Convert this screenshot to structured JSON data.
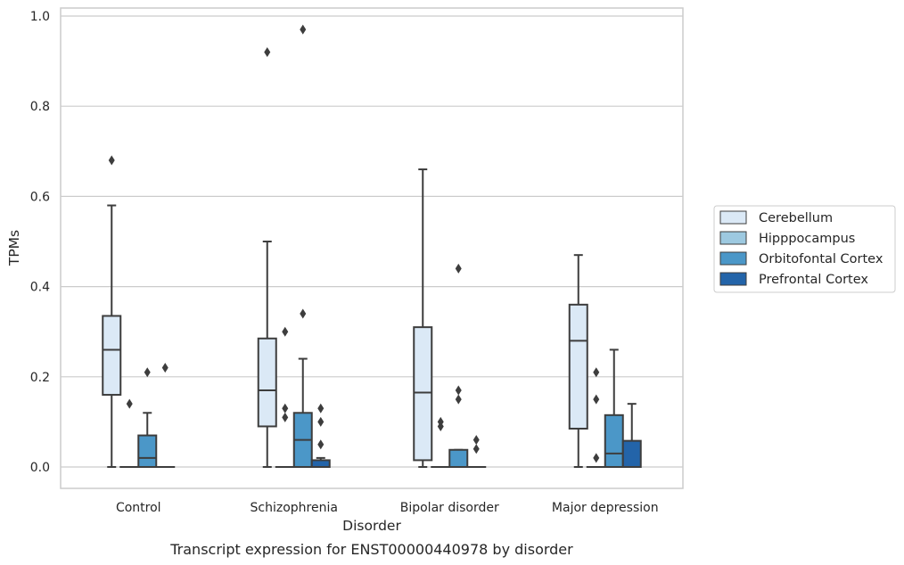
{
  "caption": "Transcript expression for ENST00000440978 by disorder",
  "chart_data": {
    "type": "box",
    "xlabel": "Disorder",
    "ylabel": "TPMs",
    "ylim": [
      -0.046,
      1.02
    ],
    "yticks": [
      "0.0",
      "0.2",
      "0.4",
      "0.6",
      "0.8",
      "1.0"
    ],
    "grid": "horizontal",
    "legend_position": "right",
    "categories": [
      "Control",
      "Schizophrenia",
      "Bipolar disorder",
      "Major depression"
    ],
    "series": [
      {
        "name": "Cerebellum",
        "color": "#dbe9f6",
        "boxes": [
          {
            "whislo": 0.0,
            "q1": 0.16,
            "median": 0.26,
            "q3": 0.335,
            "whishi": 0.58,
            "fliers": [
              0.68
            ]
          },
          {
            "whislo": 0.0,
            "q1": 0.09,
            "median": 0.17,
            "q3": 0.285,
            "whishi": 0.5,
            "fliers": [
              0.92
            ]
          },
          {
            "whislo": 0.0,
            "q1": 0.015,
            "median": 0.165,
            "q3": 0.31,
            "whishi": 0.66,
            "fliers": []
          },
          {
            "whislo": 0.0,
            "q1": 0.085,
            "median": 0.28,
            "q3": 0.36,
            "whishi": 0.47,
            "fliers": []
          }
        ]
      },
      {
        "name": "Hipppocampus",
        "color": "#9dc9e0",
        "boxes": [
          {
            "whislo": 0.0,
            "q1": 0.0,
            "median": 0.0,
            "q3": 0.0,
            "whishi": 0.0,
            "fliers": [
              0.14
            ]
          },
          {
            "whislo": 0.0,
            "q1": 0.0,
            "median": 0.0,
            "q3": 0.0,
            "whishi": 0.0,
            "fliers": [
              0.3,
              0.13,
              0.11
            ]
          },
          {
            "whislo": 0.0,
            "q1": 0.0,
            "median": 0.0,
            "q3": 0.0,
            "whishi": 0.0,
            "fliers": [
              0.1,
              0.09
            ]
          },
          {
            "whislo": 0.0,
            "q1": 0.0,
            "median": 0.0,
            "q3": 0.0,
            "whishi": 0.0,
            "fliers": [
              0.21,
              0.15,
              0.02
            ]
          }
        ]
      },
      {
        "name": "Orbitofontal Cortex",
        "color": "#4b97c8",
        "boxes": [
          {
            "whislo": 0.0,
            "q1": 0.0,
            "median": 0.02,
            "q3": 0.07,
            "whishi": 0.12,
            "fliers": [
              0.21
            ]
          },
          {
            "whislo": 0.0,
            "q1": 0.0,
            "median": 0.06,
            "q3": 0.12,
            "whishi": 0.24,
            "fliers": [
              0.97,
              0.34
            ]
          },
          {
            "whislo": 0.0,
            "q1": 0.0,
            "median": 0.0,
            "q3": 0.038,
            "whishi": 0.038,
            "fliers": [
              0.44,
              0.17,
              0.15
            ]
          },
          {
            "whislo": 0.0,
            "q1": 0.0,
            "median": 0.03,
            "q3": 0.115,
            "whishi": 0.26,
            "fliers": []
          }
        ]
      },
      {
        "name": "Prefrontal Cortex",
        "color": "#2364a9",
        "boxes": [
          {
            "whislo": 0.0,
            "q1": 0.0,
            "median": 0.0,
            "q3": 0.0,
            "whishi": 0.0,
            "fliers": [
              0.22
            ]
          },
          {
            "whislo": 0.0,
            "q1": 0.0,
            "median": 0.0,
            "q3": 0.015,
            "whishi": 0.02,
            "fliers": [
              0.13,
              0.1,
              0.05
            ]
          },
          {
            "whislo": 0.0,
            "q1": 0.0,
            "median": 0.0,
            "q3": 0.0,
            "whishi": 0.0,
            "fliers": [
              0.06,
              0.04
            ]
          },
          {
            "whislo": 0.0,
            "q1": 0.0,
            "median": 0.0,
            "q3": 0.058,
            "whishi": 0.14,
            "fliers": []
          }
        ]
      }
    ]
  }
}
